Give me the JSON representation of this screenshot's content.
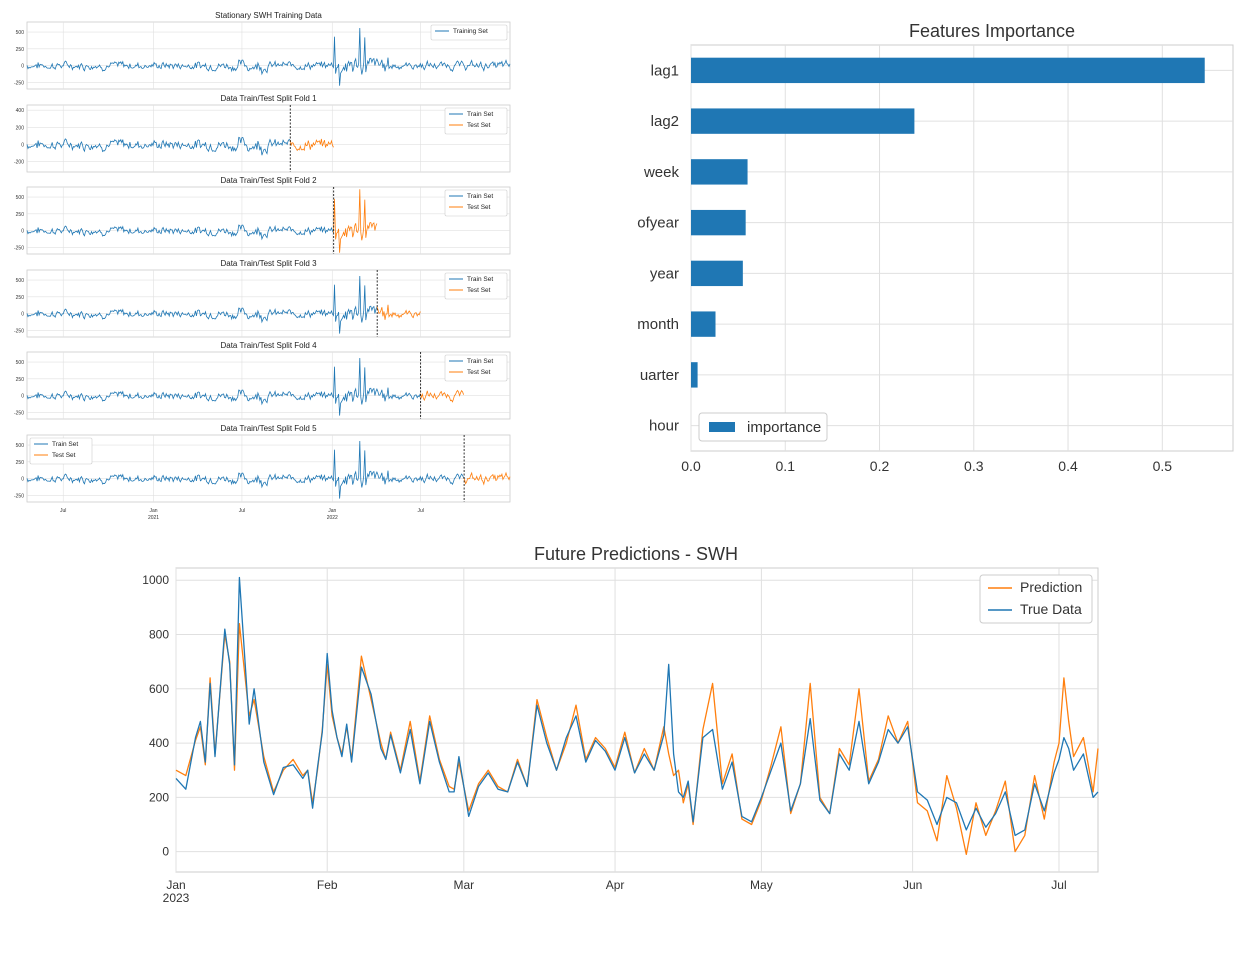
{
  "colors": {
    "blue": "#1f77b4",
    "orange": "#ff7f0e",
    "grid": "#e0e0e0",
    "axis": "#cccccc",
    "text": "#333333"
  },
  "chart_data": [
    {
      "type": "line",
      "id": "cv-folds",
      "panels": [
        {
          "title": "Stationary SWH Training Data",
          "legend": [
            "Training Set"
          ],
          "legend_position": "top-right",
          "y_ticks": [
            500,
            250,
            0,
            -250
          ],
          "ylim": [
            -350,
            650
          ],
          "train_end": 1.0,
          "test_end": null,
          "split_line": null
        },
        {
          "title": "Data Train/Test Split Fold 1",
          "legend": [
            "Train Set",
            "Test Set"
          ],
          "legend_position": "top-right",
          "y_ticks": [
            400,
            200,
            0,
            -200
          ],
          "ylim": [
            -320,
            460
          ],
          "train_end": 0.545,
          "test_end": 0.635,
          "split_line": 0.545
        },
        {
          "title": "Data Train/Test Split Fold 2",
          "legend": [
            "Train Set",
            "Test Set"
          ],
          "legend_position": "top-right",
          "y_ticks": [
            500,
            250,
            0,
            -250
          ],
          "ylim": [
            -350,
            650
          ],
          "train_end": 0.635,
          "test_end": 0.725,
          "split_line": 0.635
        },
        {
          "title": "Data Train/Test Split Fold 3",
          "legend": [
            "Train Set",
            "Test Set"
          ],
          "legend_position": "top-right",
          "y_ticks": [
            500,
            250,
            0,
            -250
          ],
          "ylim": [
            -350,
            650
          ],
          "train_end": 0.725,
          "test_end": 0.815,
          "split_line": 0.725
        },
        {
          "title": "Data Train/Test Split Fold 4",
          "legend": [
            "Train Set",
            "Test Set"
          ],
          "legend_position": "top-right",
          "y_ticks": [
            500,
            250,
            0,
            -250
          ],
          "ylim": [
            -350,
            650
          ],
          "train_end": 0.815,
          "test_end": 0.905,
          "split_line": 0.815
        },
        {
          "title": "Data Train/Test Split Fold 5",
          "legend": [
            "Train Set",
            "Test Set"
          ],
          "legend_position": "top-left",
          "y_ticks": [
            500,
            250,
            0,
            -250
          ],
          "ylim": [
            -350,
            650
          ],
          "train_end": 0.905,
          "test_end": 1.0,
          "split_line": 0.905
        }
      ],
      "x_ticks": [
        {
          "pos": 0.075,
          "label": "Jul",
          "sub": ""
        },
        {
          "pos": 0.262,
          "label": "Jan",
          "sub": "2021"
        },
        {
          "pos": 0.445,
          "label": "Jul",
          "sub": ""
        },
        {
          "pos": 0.632,
          "label": "Jan",
          "sub": "2022"
        },
        {
          "pos": 0.815,
          "label": "Jul",
          "sub": ""
        }
      ]
    },
    {
      "type": "bar",
      "id": "features-importance",
      "title": "Features Importance",
      "orientation": "horizontal",
      "categories": [
        "lag1",
        "lag2",
        "week",
        "ofyear",
        "year",
        "month",
        "uarter",
        "hour"
      ],
      "values": [
        0.545,
        0.237,
        0.06,
        0.058,
        0.055,
        0.026,
        0.007,
        0.0
      ],
      "xlim": [
        0,
        0.575
      ],
      "x_ticks": [
        0.0,
        0.1,
        0.2,
        0.3,
        0.4,
        0.5
      ],
      "x_tick_labels": [
        "0.0",
        "0.1",
        "0.2",
        "0.3",
        "0.4",
        "0.5"
      ],
      "legend": [
        "importance"
      ],
      "legend_position": "bottom-left",
      "grid": true
    },
    {
      "type": "line",
      "id": "future-predictions",
      "title": "Future Predictions - SWH",
      "x_range_days": [
        0,
        189
      ],
      "x_ticks": [
        {
          "day": 0,
          "label": "Jan",
          "sub": "2023"
        },
        {
          "day": 31,
          "label": "Feb",
          "sub": ""
        },
        {
          "day": 59,
          "label": "Mar",
          "sub": ""
        },
        {
          "day": 90,
          "label": "Apr",
          "sub": ""
        },
        {
          "day": 120,
          "label": "May",
          "sub": ""
        },
        {
          "day": 151,
          "label": "Jun",
          "sub": ""
        },
        {
          "day": 181,
          "label": "Jul",
          "sub": ""
        }
      ],
      "ylim": [
        -75,
        1045
      ],
      "y_ticks": [
        0,
        200,
        400,
        600,
        800,
        1000
      ],
      "grid": true,
      "legend_position": "top-right",
      "series": [
        {
          "name": "Prediction",
          "color": "orange",
          "x": [
            0,
            2,
            4,
            5,
            6,
            7,
            8,
            10,
            11,
            12,
            13,
            15,
            16,
            18,
            20,
            22,
            24,
            26,
            27,
            28,
            29,
            30,
            31,
            32,
            33,
            34,
            35,
            36,
            38,
            40,
            42,
            43,
            44,
            46,
            48,
            50,
            52,
            54,
            56,
            57,
            58,
            60,
            62,
            64,
            66,
            68,
            70,
            72,
            74,
            76,
            78,
            80,
            82,
            84,
            86,
            88,
            90,
            92,
            94,
            96,
            98,
            100,
            101,
            102,
            103,
            104,
            105,
            106,
            108,
            110,
            112,
            114,
            116,
            118,
            120,
            122,
            124,
            126,
            128,
            130,
            132,
            134,
            136,
            138,
            140,
            142,
            144,
            146,
            148,
            150,
            152,
            154,
            156,
            158,
            160,
            162,
            164,
            166,
            168,
            170,
            172,
            174,
            176,
            178,
            180,
            181,
            182,
            183,
            184,
            186,
            188,
            189
          ],
          "y": [
            300,
            280,
            410,
            460,
            320,
            640,
            360,
            800,
            700,
            300,
            840,
            500,
            560,
            350,
            220,
            300,
            340,
            280,
            300,
            180,
            300,
            450,
            690,
            500,
            420,
            360,
            460,
            340,
            720,
            560,
            400,
            340,
            440,
            300,
            480,
            260,
            500,
            340,
            240,
            230,
            330,
            150,
            250,
            300,
            240,
            220,
            340,
            240,
            560,
            420,
            300,
            400,
            540,
            340,
            420,
            380,
            310,
            440,
            290,
            380,
            300,
            460,
            360,
            280,
            300,
            180,
            250,
            100,
            450,
            620,
            250,
            360,
            120,
            100,
            190,
            320,
            460,
            140,
            250,
            620,
            200,
            140,
            380,
            320,
            600,
            260,
            340,
            500,
            400,
            480,
            180,
            150,
            40,
            280,
            160,
            -10,
            180,
            60,
            150,
            260,
            0,
            60,
            280,
            120,
            330,
            400,
            640,
            480,
            350,
            420,
            220,
            380
          ]
        },
        {
          "name": "True Data",
          "color": "blue",
          "x": [
            0,
            2,
            4,
            5,
            6,
            7,
            8,
            10,
            11,
            12,
            13,
            15,
            16,
            18,
            20,
            22,
            24,
            26,
            27,
            28,
            29,
            30,
            31,
            32,
            33,
            34,
            35,
            36,
            38,
            40,
            42,
            43,
            44,
            46,
            48,
            50,
            52,
            54,
            56,
            57,
            58,
            60,
            62,
            64,
            66,
            68,
            70,
            72,
            74,
            76,
            78,
            80,
            82,
            84,
            86,
            88,
            90,
            92,
            94,
            96,
            98,
            100,
            101,
            102,
            103,
            104,
            105,
            106,
            108,
            110,
            112,
            114,
            116,
            118,
            120,
            122,
            124,
            126,
            128,
            130,
            132,
            134,
            136,
            138,
            140,
            142,
            144,
            146,
            148,
            150,
            152,
            154,
            156,
            158,
            160,
            162,
            164,
            166,
            168,
            170,
            172,
            174,
            176,
            178,
            180,
            181,
            182,
            183,
            184,
            186,
            188,
            189
          ],
          "y": [
            270,
            230,
            420,
            480,
            330,
            620,
            350,
            820,
            690,
            320,
            1010,
            470,
            600,
            330,
            210,
            310,
            320,
            270,
            300,
            160,
            310,
            440,
            730,
            520,
            420,
            350,
            470,
            330,
            680,
            580,
            380,
            340,
            430,
            290,
            450,
            250,
            480,
            330,
            220,
            220,
            350,
            130,
            240,
            290,
            230,
            220,
            330,
            240,
            540,
            400,
            300,
            420,
            500,
            330,
            410,
            370,
            300,
            420,
            290,
            360,
            300,
            430,
            690,
            360,
            220,
            200,
            260,
            110,
            420,
            450,
            230,
            330,
            130,
            110,
            200,
            300,
            400,
            150,
            250,
            490,
            190,
            140,
            360,
            300,
            480,
            250,
            330,
            450,
            400,
            460,
            220,
            190,
            100,
            200,
            180,
            80,
            160,
            90,
            140,
            220,
            60,
            80,
            250,
            150,
            290,
            340,
            420,
            380,
            300,
            360,
            200,
            220
          ]
        }
      ]
    }
  ]
}
